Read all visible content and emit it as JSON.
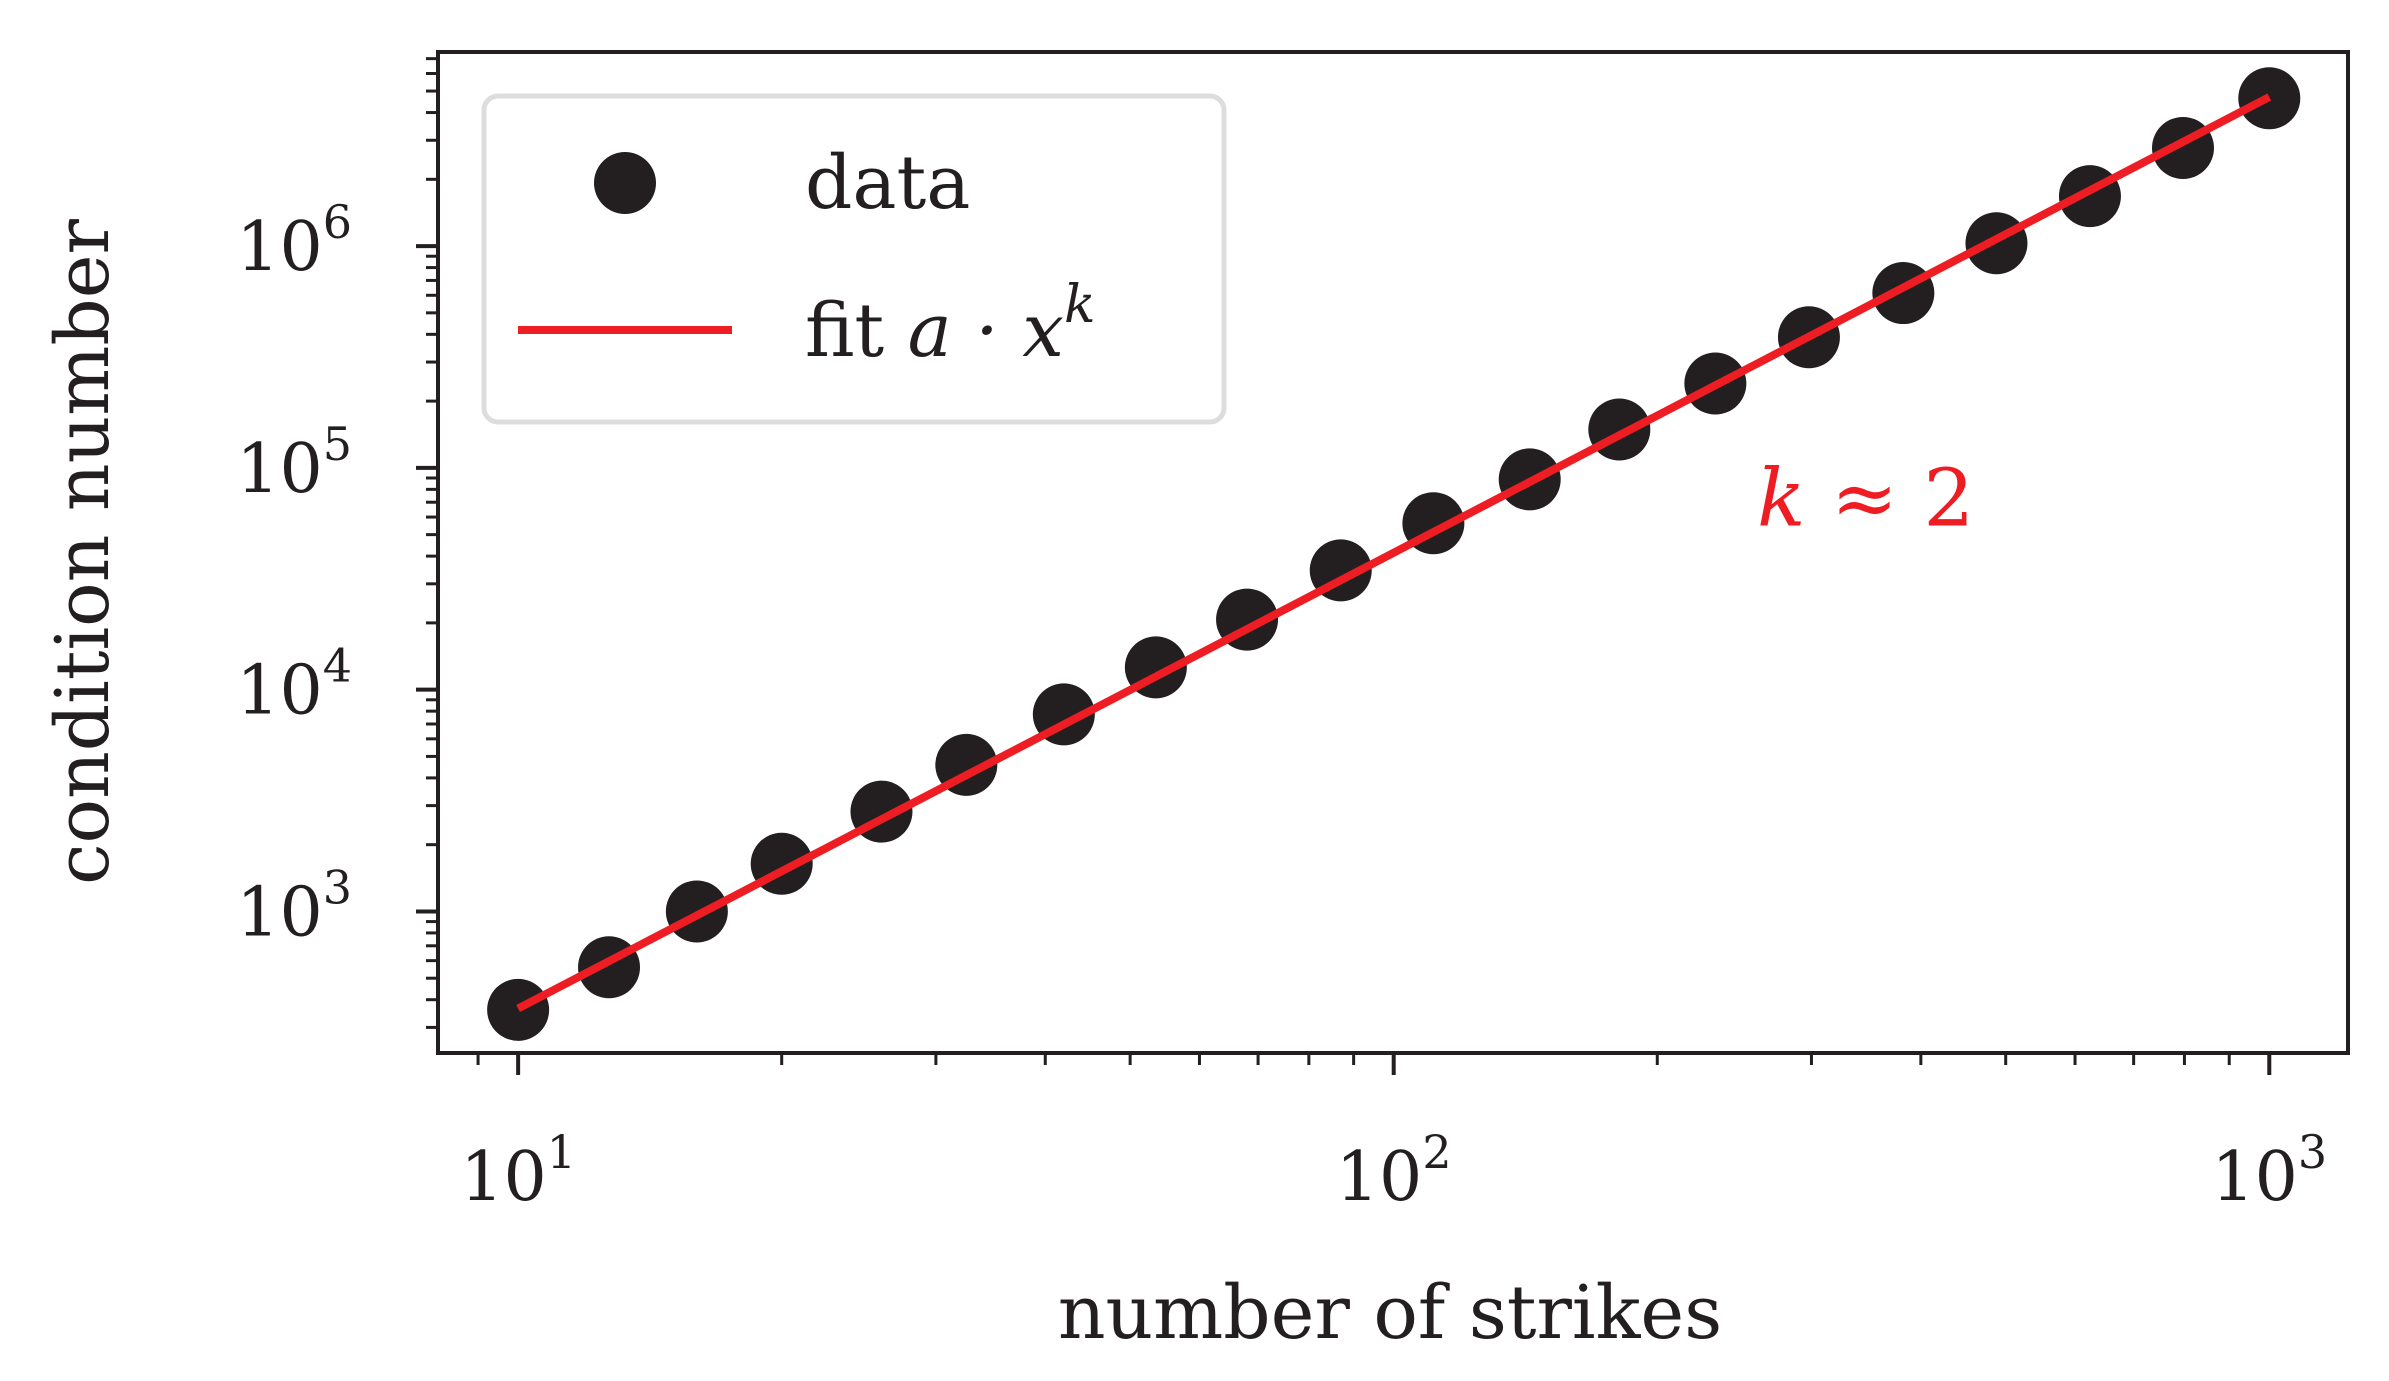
{
  "chart_data": {
    "type": "scatter",
    "xlabel": "number of strikes",
    "ylabel": "condition number",
    "xscale": "log",
    "yscale": "log",
    "xlim": [
      8.1,
      1230
    ],
    "ylim": [
      230,
      7500000
    ],
    "x_ticks": [
      {
        "base": "10",
        "exp": "1",
        "value": 10
      },
      {
        "base": "10",
        "exp": "2",
        "value": 100
      },
      {
        "base": "10",
        "exp": "3",
        "value": 1000
      }
    ],
    "y_ticks": [
      {
        "base": "10",
        "exp": "3",
        "value": 1000
      },
      {
        "base": "10",
        "exp": "4",
        "value": 10000
      },
      {
        "base": "10",
        "exp": "5",
        "value": 100000
      },
      {
        "base": "10",
        "exp": "6",
        "value": 1000000
      }
    ],
    "series": [
      {
        "name": "data",
        "kind": "points",
        "color": "#231f20",
        "x": [
          10,
          12.7,
          16,
          20,
          26,
          32.5,
          42,
          53.5,
          68,
          87,
          111,
          143,
          181,
          233,
          298,
          382,
          488,
          624,
          797,
          1000
        ],
        "y": [
          360,
          560,
          1000,
          1640,
          2820,
          4580,
          7740,
          12600,
          20700,
          34500,
          56300,
          88700,
          149000,
          240000,
          388000,
          614000,
          1030000,
          1680000,
          2770000,
          4640000
        ]
      },
      {
        "name": "fit",
        "kind": "line",
        "color": "#ee1d23",
        "x": [
          10,
          1000
        ],
        "y": [
          365,
          4700000
        ]
      }
    ],
    "legend": {
      "placement": "top-left",
      "entries": [
        {
          "label": "data",
          "math": ""
        },
        {
          "label": "fit ",
          "math": "a · x",
          "sup": "k"
        }
      ]
    },
    "annotation": {
      "math": "k",
      "text": " ≈ 2",
      "color": "#ee1d23",
      "x": 260,
      "y": 55000
    }
  }
}
